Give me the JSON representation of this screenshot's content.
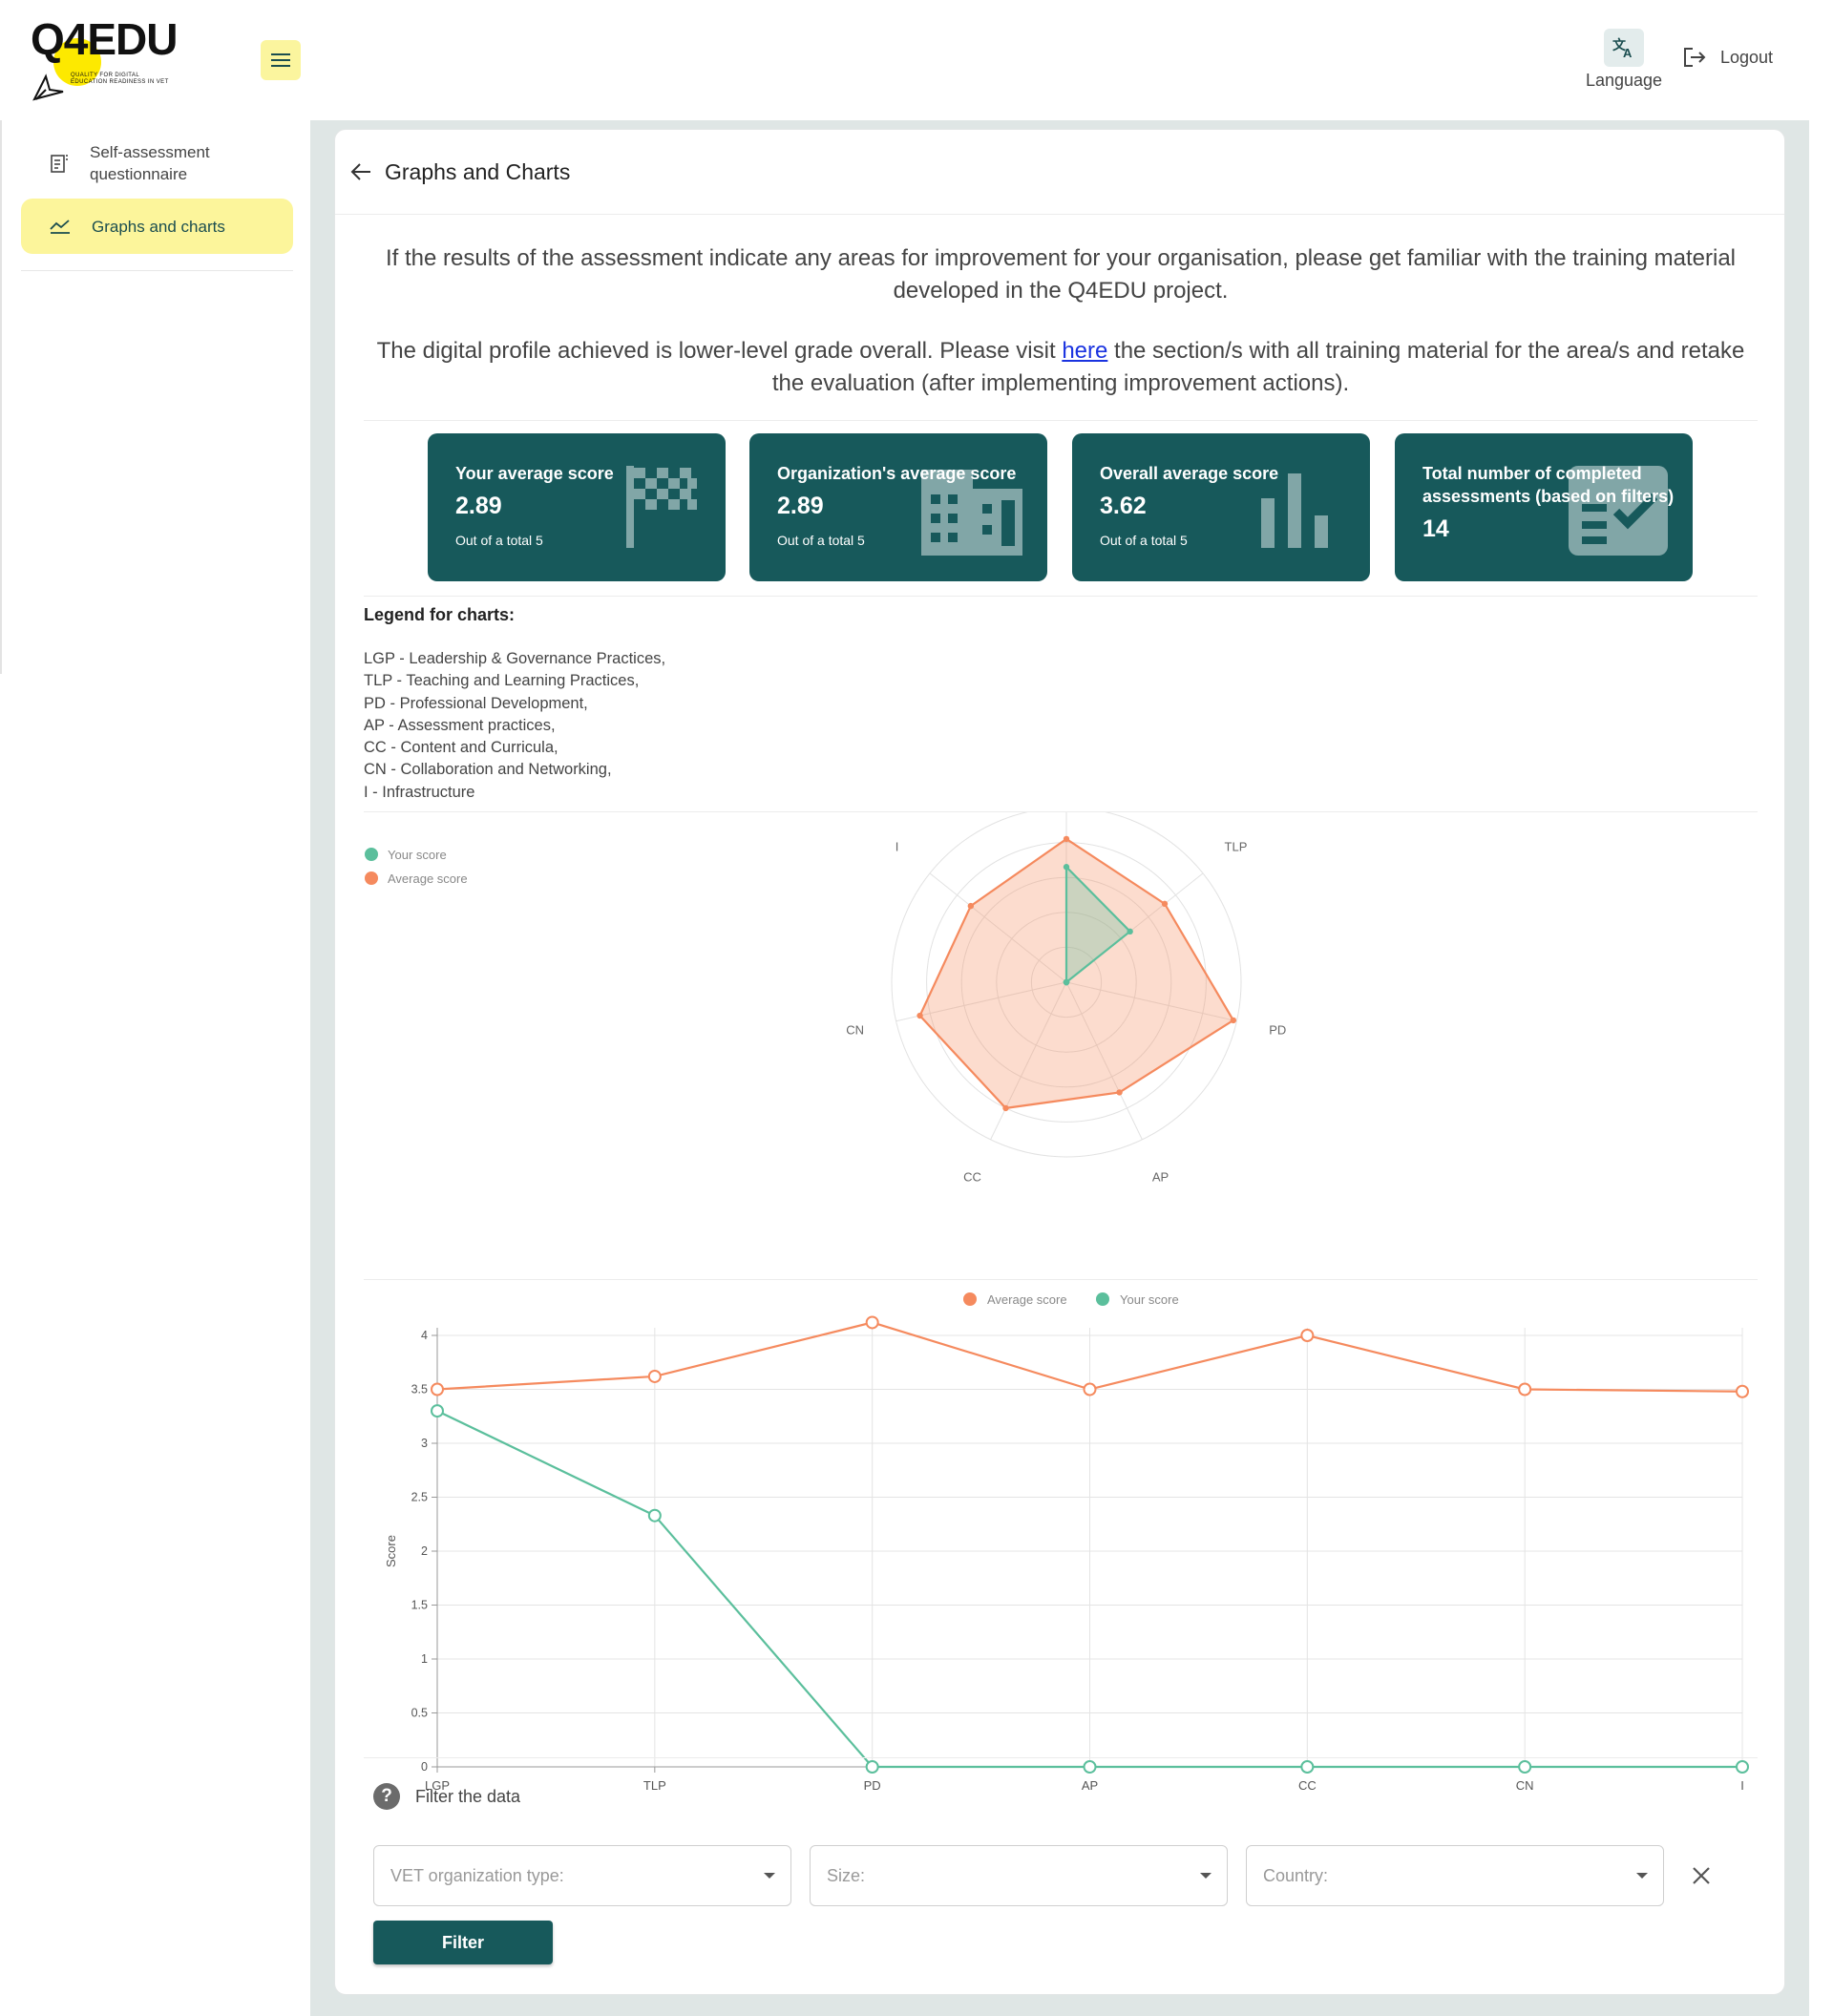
{
  "header": {
    "logo_text": "Q4EDU",
    "logo_tagline": [
      "QUALITY FOR DIGITAL",
      "EDUCATION READINESS IN VET"
    ],
    "language_label": "Language",
    "logout_label": "Logout"
  },
  "sidebar": {
    "items": [
      {
        "label": "Self-assessment questionnaire",
        "icon": "document-icon",
        "active": false
      },
      {
        "label": "Graphs and charts",
        "icon": "chart-line-icon",
        "active": true
      }
    ]
  },
  "page": {
    "title": "Graphs and Charts",
    "intro_1": "If the results of the assessment indicate any areas for improvement for your organisation, please get familiar with the training material developed in the Q4EDU project.",
    "intro_2_before": "The digital profile achieved is lower-level grade overall. Please visit ",
    "intro_2_link": "here",
    "intro_2_after": " the section/s with all training material for the area/s and retake the evaluation (after implementing improvement actions)."
  },
  "stats": [
    {
      "label": "Your average score",
      "value": "2.89",
      "sub": "Out of a total 5",
      "icon": "flag-icon"
    },
    {
      "label": "Organization's average score",
      "value": "2.89",
      "sub": "Out of a total 5",
      "icon": "building-icon"
    },
    {
      "label": "Overall average score",
      "value": "3.62",
      "sub": "Out of a total 5",
      "icon": "bar-chart-icon"
    },
    {
      "label": "Total number of completed assessments (based on filters)",
      "value": "14",
      "sub": "",
      "icon": "checklist-icon"
    }
  ],
  "legend": {
    "title": "Legend for charts:",
    "items": [
      "LGP - Leadership & Governance Practices,",
      "TLP - Teaching and Learning Practices,",
      "PD - Professional Development,",
      "AP - Assessment practices,",
      "CC - Content and Curricula,",
      "CN - Collaboration and Networking,",
      "I - Infrastructure"
    ]
  },
  "chart_data": [
    {
      "type": "radar",
      "axes": [
        "LGP",
        "TLP",
        "PD",
        "AP",
        "CC",
        "CN",
        "I"
      ],
      "range": [
        0,
        5
      ],
      "series": [
        {
          "name": "Your score",
          "color": "#5bbf9c",
          "values": [
            3.3,
            2.33,
            0,
            0,
            0,
            0,
            0
          ]
        },
        {
          "name": "Average score",
          "color": "#f58a5e",
          "values": [
            4.1,
            3.6,
            4.9,
            3.5,
            4.0,
            4.3,
            3.5
          ]
        }
      ],
      "legend_position": "top-left"
    },
    {
      "type": "line",
      "categories": [
        "LGP",
        "TLP",
        "PD",
        "AP",
        "CC",
        "CN",
        "I"
      ],
      "ylabel": "Score",
      "ylim": [
        0,
        4
      ],
      "yticks": [
        "0",
        "0.5",
        "1",
        "1.5",
        "2",
        "2.5",
        "3",
        "3.5",
        "4"
      ],
      "series": [
        {
          "name": "Average score",
          "color": "#f58a5e",
          "values": [
            3.5,
            3.62,
            4.12,
            3.5,
            4.0,
            3.5,
            3.48
          ]
        },
        {
          "name": "Your score",
          "color": "#5bbf9c",
          "values": [
            3.3,
            2.33,
            0,
            0,
            0,
            0,
            0
          ]
        }
      ],
      "legend_position": "top-center"
    }
  ],
  "filters": {
    "title": "Filter the data",
    "selects": [
      {
        "placeholder": "VET organization type:"
      },
      {
        "placeholder": "Size:"
      },
      {
        "placeholder": "Country:"
      }
    ],
    "button_label": "Filter"
  }
}
